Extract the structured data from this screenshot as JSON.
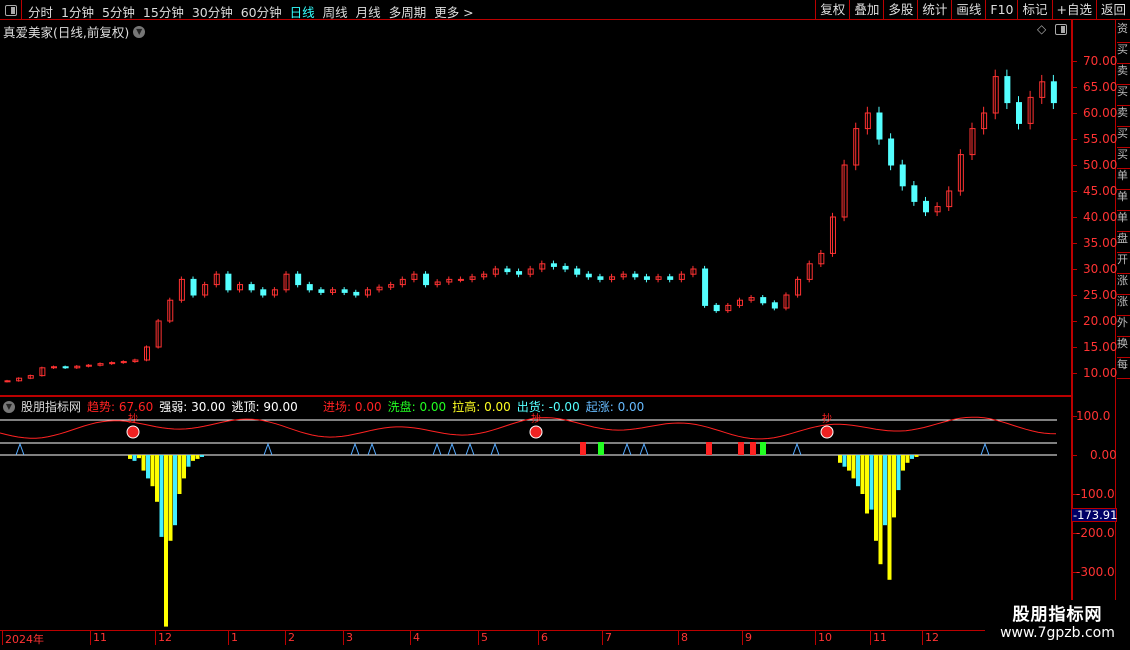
{
  "toolbar": {
    "periods": [
      "分时",
      "1分钟",
      "5分钟",
      "15分钟",
      "30分钟",
      "60分钟",
      "日线",
      "周线",
      "月线",
      "多周期",
      "更多 >"
    ],
    "active": "日线",
    "tools": [
      "复权",
      "叠加",
      "多股",
      "统计",
      "画线",
      "F10",
      "标记",
      "+自选",
      "返回"
    ]
  },
  "chart": {
    "title": "真爱美家(日线,前复权)",
    "price_axis": [
      "70.00",
      "65.00",
      "60.00",
      "55.00",
      "50.00",
      "45.00",
      "40.00",
      "35.00",
      "30.00",
      "25.00",
      "20.00",
      "15.00",
      "10.00"
    ],
    "closes": [
      8.5,
      9,
      9.5,
      11,
      11.2,
      11,
      11.3,
      11.5,
      11.8,
      12,
      12.2,
      12.5,
      15,
      20,
      24,
      28,
      25,
      27,
      29,
      26,
      27,
      26,
      25,
      26,
      29,
      27,
      26,
      25.5,
      26,
      25.5,
      25,
      26,
      26.5,
      27,
      28,
      29,
      27,
      27.5,
      28,
      28,
      28.5,
      29,
      30,
      29.5,
      29,
      30,
      31,
      30.5,
      30,
      29,
      28.5,
      28,
      28.5,
      29,
      28.5,
      28,
      28.5,
      28,
      29,
      30,
      23,
      22,
      23,
      24,
      24.5,
      23.5,
      22.5,
      25,
      28,
      31,
      33,
      40,
      50,
      57,
      60,
      55,
      50,
      46,
      43,
      41,
      42,
      45,
      52,
      57,
      60,
      67,
      62,
      58,
      63,
      66,
      62
    ],
    "colors": {
      "up": "#ff3232",
      "down": "#54ffff"
    }
  },
  "indicator": {
    "name": "股朋指标网",
    "trend": {
      "label": "趋势:",
      "value": "67.60"
    },
    "strength": {
      "label": "强弱:",
      "value": "30.00"
    },
    "top": {
      "label": "逃顶:",
      "value": "90.00"
    },
    "enter": {
      "label": "进场:",
      "value": "0.00"
    },
    "wash": {
      "label": "洗盘:",
      "value": "0.00"
    },
    "pull": {
      "label": "拉高:",
      "value": "0.00"
    },
    "ship": {
      "label": "出货:",
      "value": "-0.00"
    },
    "rise": {
      "label": "起涨:",
      "value": "0.00"
    },
    "axis": [
      "100.0",
      "0.00",
      "-100.0",
      "-200.0",
      "-300.0"
    ],
    "current": "-173.91",
    "signal_label": "抄",
    "hist": [
      -10,
      -15,
      -8,
      -40,
      -60,
      -80,
      -120,
      -210,
      -440,
      -220,
      -180,
      -100,
      -60,
      -30,
      -15,
      -10,
      -5
    ],
    "hist2": [
      -20,
      -30,
      -40,
      -60,
      -80,
      -100,
      -150,
      -140,
      -220,
      -280,
      -180,
      -320,
      -160,
      -90,
      -40,
      -20,
      -10,
      -5
    ]
  },
  "time_axis": [
    "2024年",
    "11",
    "12",
    "1",
    "2",
    "3",
    "4",
    "5",
    "6",
    "7",
    "8",
    "9",
    "10",
    "11",
    "12"
  ],
  "side_tabs": [
    "资",
    "买",
    "卖",
    "买",
    "卖",
    "买",
    "买",
    "单",
    "单",
    "单",
    "盘",
    "开",
    "涨",
    "涨",
    "外",
    "换",
    "每"
  ],
  "logo": {
    "name": "股朋指标网",
    "url": "www.7gpzb.com"
  }
}
